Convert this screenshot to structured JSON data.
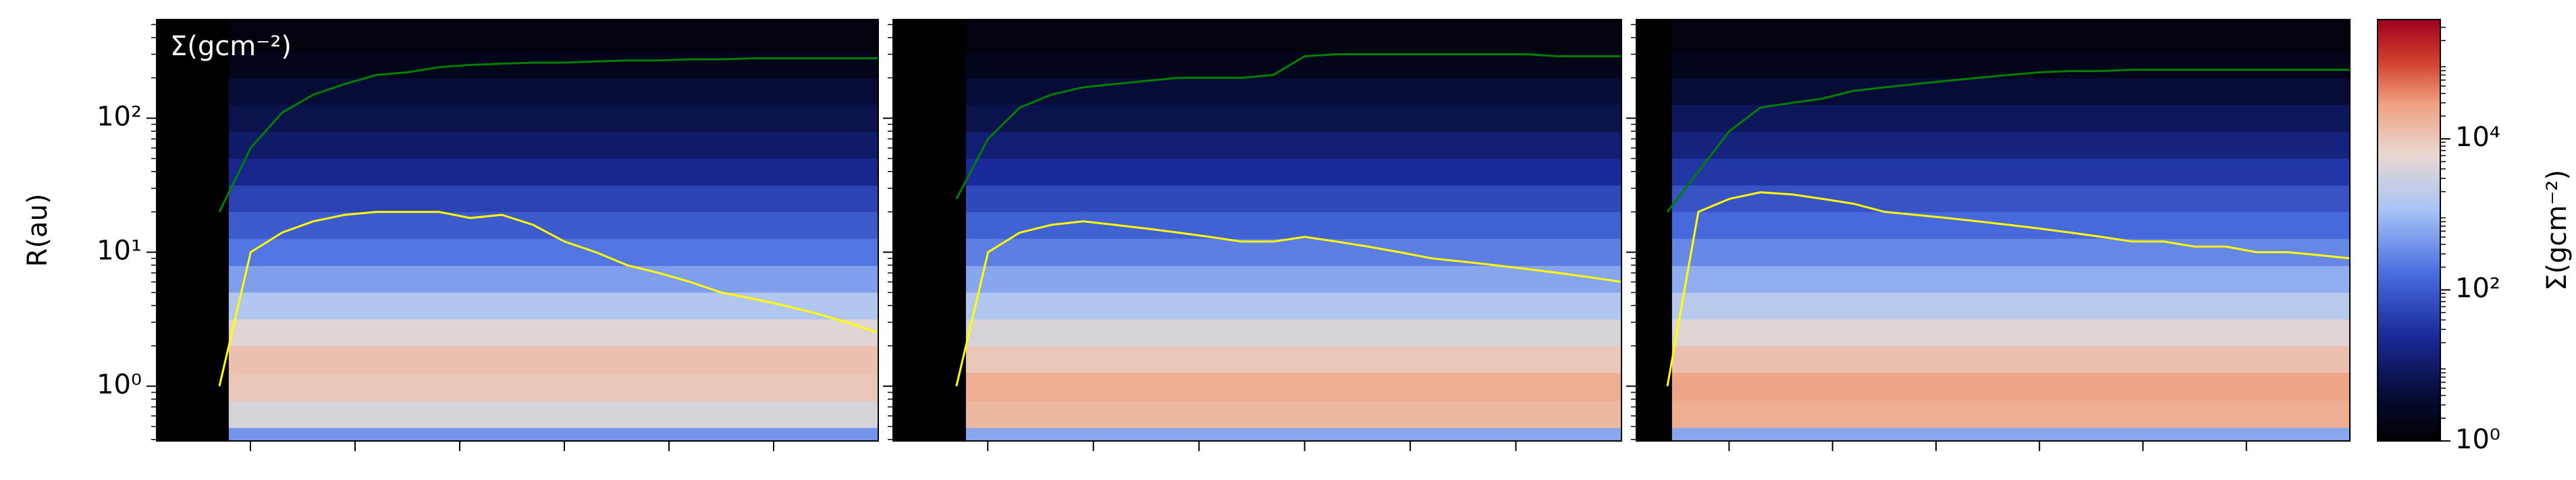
{
  "chart_data": [
    {
      "type": "heatmap",
      "title": "Σ(gcm⁻²)",
      "ylabel": "R(au)",
      "ylog": true,
      "ylim": [
        0.39,
        545
      ],
      "yticks": [
        {
          "value": 1,
          "label": "10⁰"
        },
        {
          "value": 10,
          "label": "10¹"
        },
        {
          "value": 100,
          "label": "10²"
        }
      ],
      "radii": [
        0.4,
        0.6,
        1,
        1.6,
        2.5,
        4,
        6.3,
        10,
        16,
        25,
        40,
        63,
        100,
        160,
        250,
        400
      ],
      "sigma": [
        400,
        4000,
        10000,
        12000,
        5000,
        1500,
        500,
        200,
        100,
        50,
        20,
        10,
        6,
        4,
        2,
        1.5
      ],
      "categories": [
        null,
        null,
        null,
        null,
        null,
        null,
        null,
        null,
        null,
        null,
        null,
        null,
        null,
        null,
        null,
        null,
        null,
        null,
        null,
        null,
        null,
        null,
        null,
        null
      ],
      "series": [
        {
          "color": "#008000",
          "values": [
            null,
            null,
            20,
            60,
            110,
            150,
            180,
            210,
            220,
            240,
            250,
            255,
            260,
            260,
            265,
            270,
            270,
            275,
            275,
            280,
            280,
            280,
            280,
            280
          ]
        },
        {
          "color": "#ffff00",
          "values": [
            null,
            null,
            1,
            10,
            14,
            17,
            19,
            20,
            20,
            20,
            18,
            19,
            16,
            12,
            10,
            8,
            7,
            6,
            5,
            4.5,
            4,
            3.5,
            3,
            2.5
          ]
        }
      ]
    },
    {
      "type": "heatmap",
      "ylog": true,
      "ylim": [
        0.39,
        545
      ],
      "yticks": [
        1,
        10,
        100
      ],
      "radii": [
        0.4,
        0.6,
        1,
        1.6,
        2.5,
        4,
        6.3,
        10,
        16,
        25,
        40,
        63,
        100,
        160,
        250,
        400
      ],
      "sigma": [
        600,
        15000,
        20000,
        10000,
        4000,
        1500,
        600,
        250,
        120,
        60,
        25,
        12,
        6,
        4,
        2,
        1.5
      ],
      "categories": [
        null,
        null,
        null,
        null,
        null,
        null,
        null,
        null,
        null,
        null,
        null,
        null,
        null,
        null,
        null,
        null,
        null,
        null,
        null,
        null,
        null,
        null,
        null,
        null
      ],
      "series": [
        {
          "color": "#008000",
          "values": [
            null,
            null,
            25,
            70,
            120,
            150,
            170,
            180,
            190,
            200,
            200,
            200,
            210,
            290,
            300,
            300,
            300,
            300,
            300,
            300,
            300,
            290,
            290,
            290
          ]
        },
        {
          "color": "#ffff00",
          "values": [
            null,
            null,
            1,
            10,
            14,
            16,
            17,
            16,
            15,
            14,
            13,
            12,
            12,
            13,
            12,
            11,
            10,
            9,
            8.5,
            8,
            7.5,
            7,
            6.5,
            6
          ]
        }
      ]
    },
    {
      "type": "heatmap",
      "ylog": true,
      "ylim": [
        0.39,
        545
      ],
      "yticks": [
        1,
        10,
        100
      ],
      "radii": [
        0.4,
        0.6,
        1,
        1.6,
        2.5,
        4,
        6.3,
        10,
        16,
        25,
        40,
        63,
        100,
        160,
        250,
        400
      ],
      "sigma": [
        600,
        20000,
        25000,
        12000,
        5000,
        1800,
        700,
        300,
        150,
        80,
        35,
        15,
        8,
        4,
        2,
        1.5
      ],
      "categories": [
        null,
        null,
        null,
        null,
        null,
        null,
        null,
        null,
        null,
        null,
        null,
        null,
        null,
        null,
        null,
        null,
        null,
        null,
        null,
        null,
        null,
        null,
        null,
        null
      ],
      "series": [
        {
          "color": "#008000",
          "values": [
            null,
            20,
            40,
            80,
            120,
            130,
            140,
            160,
            170,
            180,
            190,
            200,
            210,
            220,
            225,
            225,
            230,
            230,
            230,
            230,
            230,
            230,
            230,
            230
          ]
        },
        {
          "color": "#ffff00",
          "values": [
            null,
            1,
            20,
            25,
            28,
            27,
            25,
            23,
            20,
            19,
            18,
            17,
            16,
            15,
            14,
            13,
            12,
            12,
            11,
            11,
            10,
            10,
            9.5,
            9
          ]
        }
      ]
    },
    {
      "type": "colorbar",
      "label": "Σ(gcm⁻²)",
      "ylog": true,
      "ylim": [
        1,
        380000
      ],
      "yticks": [
        {
          "value": 1,
          "label": "10⁰"
        },
        {
          "value": 100,
          "label": "10²"
        },
        {
          "value": 10000,
          "label": "10⁴"
        }
      ]
    }
  ]
}
